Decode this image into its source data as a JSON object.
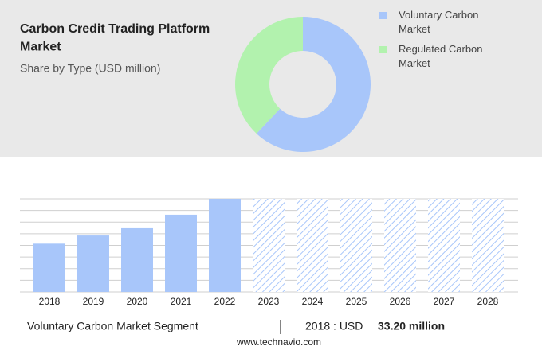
{
  "chart_data": [
    {
      "type": "pie",
      "title": "Carbon Credit Trading Platform Market",
      "subtitle": "Share by Type (USD million)",
      "categories": [
        "Voluntary Carbon Market",
        "Regulated Carbon Market"
      ],
      "values": [
        62,
        38
      ],
      "colors": [
        "#a8c6fa",
        "#b2f2ae"
      ],
      "donut": true,
      "legend": "right"
    },
    {
      "type": "bar",
      "categories": [
        "2018",
        "2019",
        "2020",
        "2021",
        "2022",
        "2023",
        "2024",
        "2025",
        "2026",
        "2027",
        "2028"
      ],
      "values": [
        33.2,
        38.8,
        43.8,
        53.1,
        64,
        null,
        null,
        null,
        null,
        null,
        null
      ],
      "color": "#a8c6fa",
      "ylim": [
        0,
        64
      ],
      "yticks": [
        0,
        8,
        16,
        24,
        32,
        40,
        48,
        56,
        64
      ],
      "grid": true
    }
  ],
  "footer": {
    "segment": "Voluntary Carbon Market Segment",
    "year_label": "2018 : USD",
    "value_label": "33.20 million",
    "source": "www.technavio.com"
  }
}
